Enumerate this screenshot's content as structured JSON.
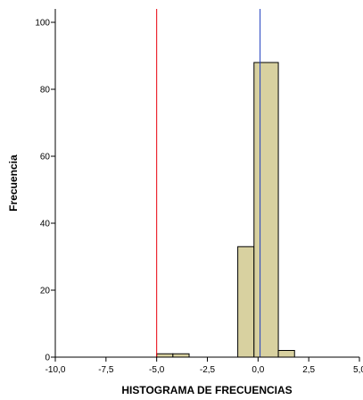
{
  "chart_data": {
    "type": "bar",
    "xlabel": "HISTOGRAMA DE FRECUENCIAS",
    "ylabel": "Frecuencia",
    "xlim": [
      -10,
      5
    ],
    "ylim": [
      0,
      104
    ],
    "x_ticks": [
      -10,
      -7.5,
      -5,
      -2.5,
      0,
      2.5,
      5
    ],
    "x_tick_labels": [
      "-10,0",
      "-7,5",
      "-5,0",
      "-2,5",
      "0,0",
      "2,5",
      "5,0"
    ],
    "y_ticks": [
      0,
      20,
      40,
      60,
      80,
      100
    ],
    "y_tick_labels": [
      "0",
      "20",
      "40",
      "60",
      "80",
      "100"
    ],
    "bins": [
      {
        "from": -5,
        "to": -4.2,
        "count": 1
      },
      {
        "from": -4.2,
        "to": -3.4,
        "count": 1
      },
      {
        "from": -1,
        "to": -0.2,
        "count": 33
      },
      {
        "from": -0.2,
        "to": 1,
        "count": 88
      },
      {
        "from": 1,
        "to": 1.8,
        "count": 2
      }
    ],
    "reference_lines": [
      {
        "x": -5,
        "color": "#e8000b"
      },
      {
        "x": 0.1,
        "color": "#1f3fbf"
      }
    ],
    "bar_color": "#d8d1a0",
    "grid": false
  }
}
